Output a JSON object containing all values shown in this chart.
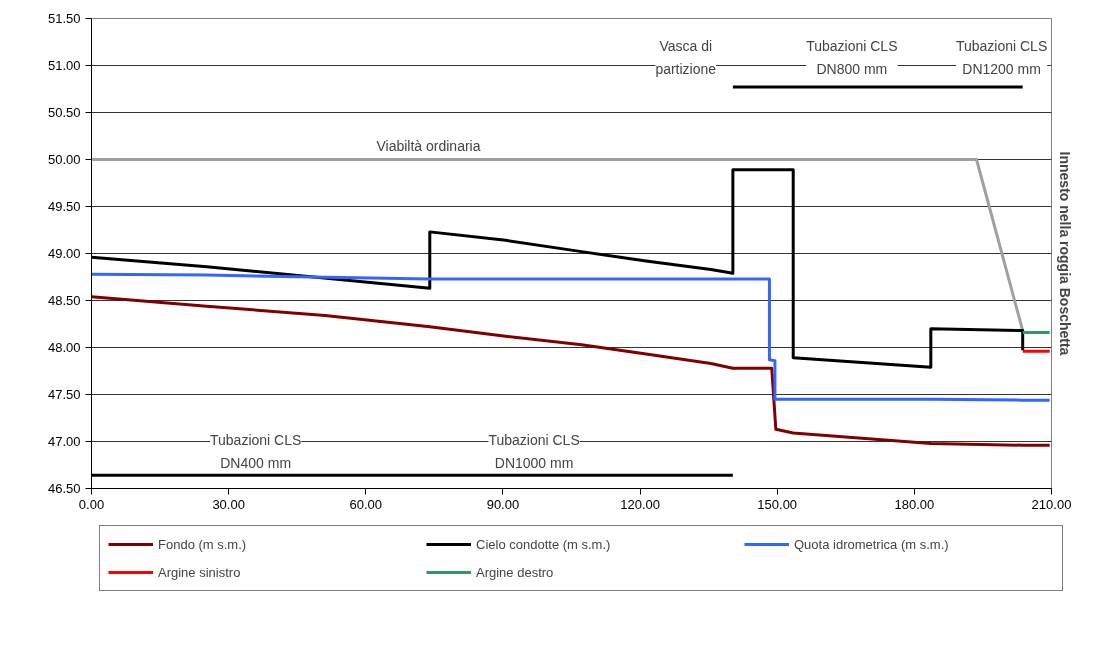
{
  "chart_data": {
    "type": "line",
    "xlim": [
      0,
      210
    ],
    "ylim": [
      46.5,
      51.5
    ],
    "xticks": [
      {
        "value": 0,
        "label": "0.00"
      },
      {
        "value": 30,
        "label": "30.00"
      },
      {
        "value": 60,
        "label": "60.00"
      },
      {
        "value": 90,
        "label": "90.00"
      },
      {
        "value": 120,
        "label": "120.00"
      },
      {
        "value": 150,
        "label": "150.00"
      },
      {
        "value": 180,
        "label": "180.00"
      },
      {
        "value": 210,
        "label": "210.00"
      }
    ],
    "yticks": [
      {
        "value": 46.5,
        "label": "46.50"
      },
      {
        "value": 47,
        "label": "47.00"
      },
      {
        "value": 47.5,
        "label": "47.50"
      },
      {
        "value": 48,
        "label": "48.00"
      },
      {
        "value": 48.5,
        "label": "48.50"
      },
      {
        "value": 49,
        "label": "49.00"
      },
      {
        "value": 49.5,
        "label": "49.50"
      },
      {
        "value": 50,
        "label": "50.00"
      },
      {
        "value": 50.5,
        "label": "50.50"
      },
      {
        "value": 51,
        "label": "51.00"
      },
      {
        "value": 51.5,
        "label": "51.50"
      }
    ],
    "grid": "y",
    "legend": "bottom",
    "marker": "none",
    "line_style": "solid",
    "series": [
      {
        "color": "#a0a0a0",
        "x": [
          0,
          193.6,
          203.7
        ],
        "values": [
          50.0,
          50.0,
          48.18
        ]
      },
      {
        "name": "Fondo (m s.m.)",
        "color": "#800000",
        "x": [
          0,
          25.2,
          51.1,
          74,
          90.6,
          107.2,
          121.3,
          135.5,
          140.3,
          148.8,
          149.7,
          153.5,
          183.6,
          203.7,
          209.6
        ],
        "values": [
          48.54,
          48.44,
          48.34,
          48.22,
          48.12,
          48.03,
          47.93,
          47.83,
          47.78,
          47.78,
          47.13,
          47.09,
          46.98,
          46.96,
          46.96
        ]
      },
      {
        "name": "Cielo condotte (m s.m.)",
        "color": "#000000",
        "x": [
          0,
          25.2,
          74,
          74,
          90.6,
          107.2,
          121.3,
          135.5,
          140.3,
          140.3,
          153.5,
          153.5,
          183.6,
          183.6,
          203.7,
          203.7
        ],
        "values": [
          48.96,
          48.86,
          48.63,
          49.23,
          49.14,
          49.02,
          48.92,
          48.83,
          48.79,
          49.89,
          49.89,
          47.89,
          47.79,
          48.2,
          48.18,
          47.97
        ]
      },
      {
        "name": "Quota idrometrica (m s.m.)",
        "color": "#3366ff",
        "x": [
          0,
          25.2,
          74,
          148.3,
          148.3,
          149.5,
          149.5,
          183.6,
          203.7,
          209.6
        ],
        "values": [
          48.78,
          48.77,
          48.73,
          48.73,
          47.87,
          47.86,
          47.45,
          47.45,
          47.44,
          47.44
        ]
      },
      {
        "name": "Argine sinistro",
        "color": "#ff0000",
        "x": [
          203.7,
          209.6
        ],
        "values": [
          47.96,
          47.96
        ]
      },
      {
        "name": "Argine destro",
        "color": "#2e9960",
        "x": [
          203.7,
          209.6
        ],
        "values": [
          48.16,
          48.16
        ]
      },
      {
        "color": "#000000",
        "x": [
          0,
          74,
          140.3
        ],
        "values": [
          46.64,
          46.64,
          46.64
        ]
      },
      {
        "color": "#000000",
        "x": [
          140.3,
          153.5,
          183.6,
          203.7
        ],
        "values": [
          50.77,
          50.77,
          50.77,
          50.77
        ]
      }
    ],
    "annotations": [
      "Viabiltà ordinaria",
      "Tubazioni CLS\nDN400 mm",
      "Tubazioni CLS\nDN1000 mm",
      "Vasca di\npartizione",
      "Tubazioni CLS\nDN800 mm",
      "Tubazioni CLS\nDN1200 mm",
      "Innesto nella roggia Boschetta"
    ]
  }
}
